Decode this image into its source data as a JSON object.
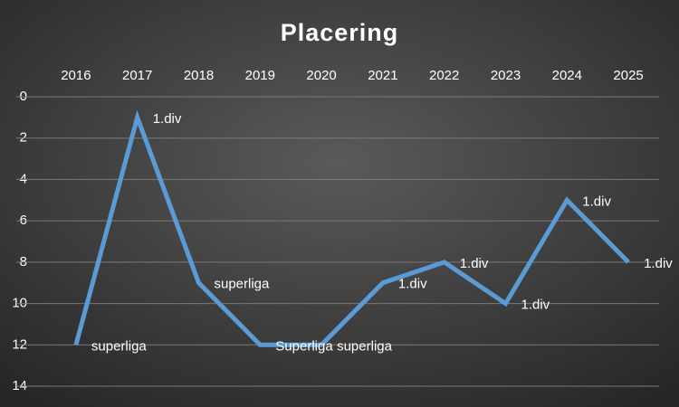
{
  "chart_data": {
    "type": "line",
    "title": "Placering",
    "categories": [
      "2016",
      "2017",
      "2018",
      "2019",
      "2020",
      "2021",
      "2022",
      "2023",
      "2024",
      "2025"
    ],
    "series": [
      {
        "color": "#5b9bd5",
        "values": [
          12,
          1,
          9,
          12,
          12,
          9,
          8,
          10,
          5,
          8
        ],
        "point_labels": [
          "superliga",
          "1.div",
          "superliga",
          "Superliga",
          "superliga",
          "1.div",
          "1.div",
          "1.div",
          "1.div",
          "1.div"
        ]
      }
    ],
    "ylim": [
      0,
      14
    ],
    "yticks": [
      0,
      2,
      4,
      6,
      8,
      10,
      12,
      14
    ],
    "y_inverted": true,
    "grid": true
  }
}
